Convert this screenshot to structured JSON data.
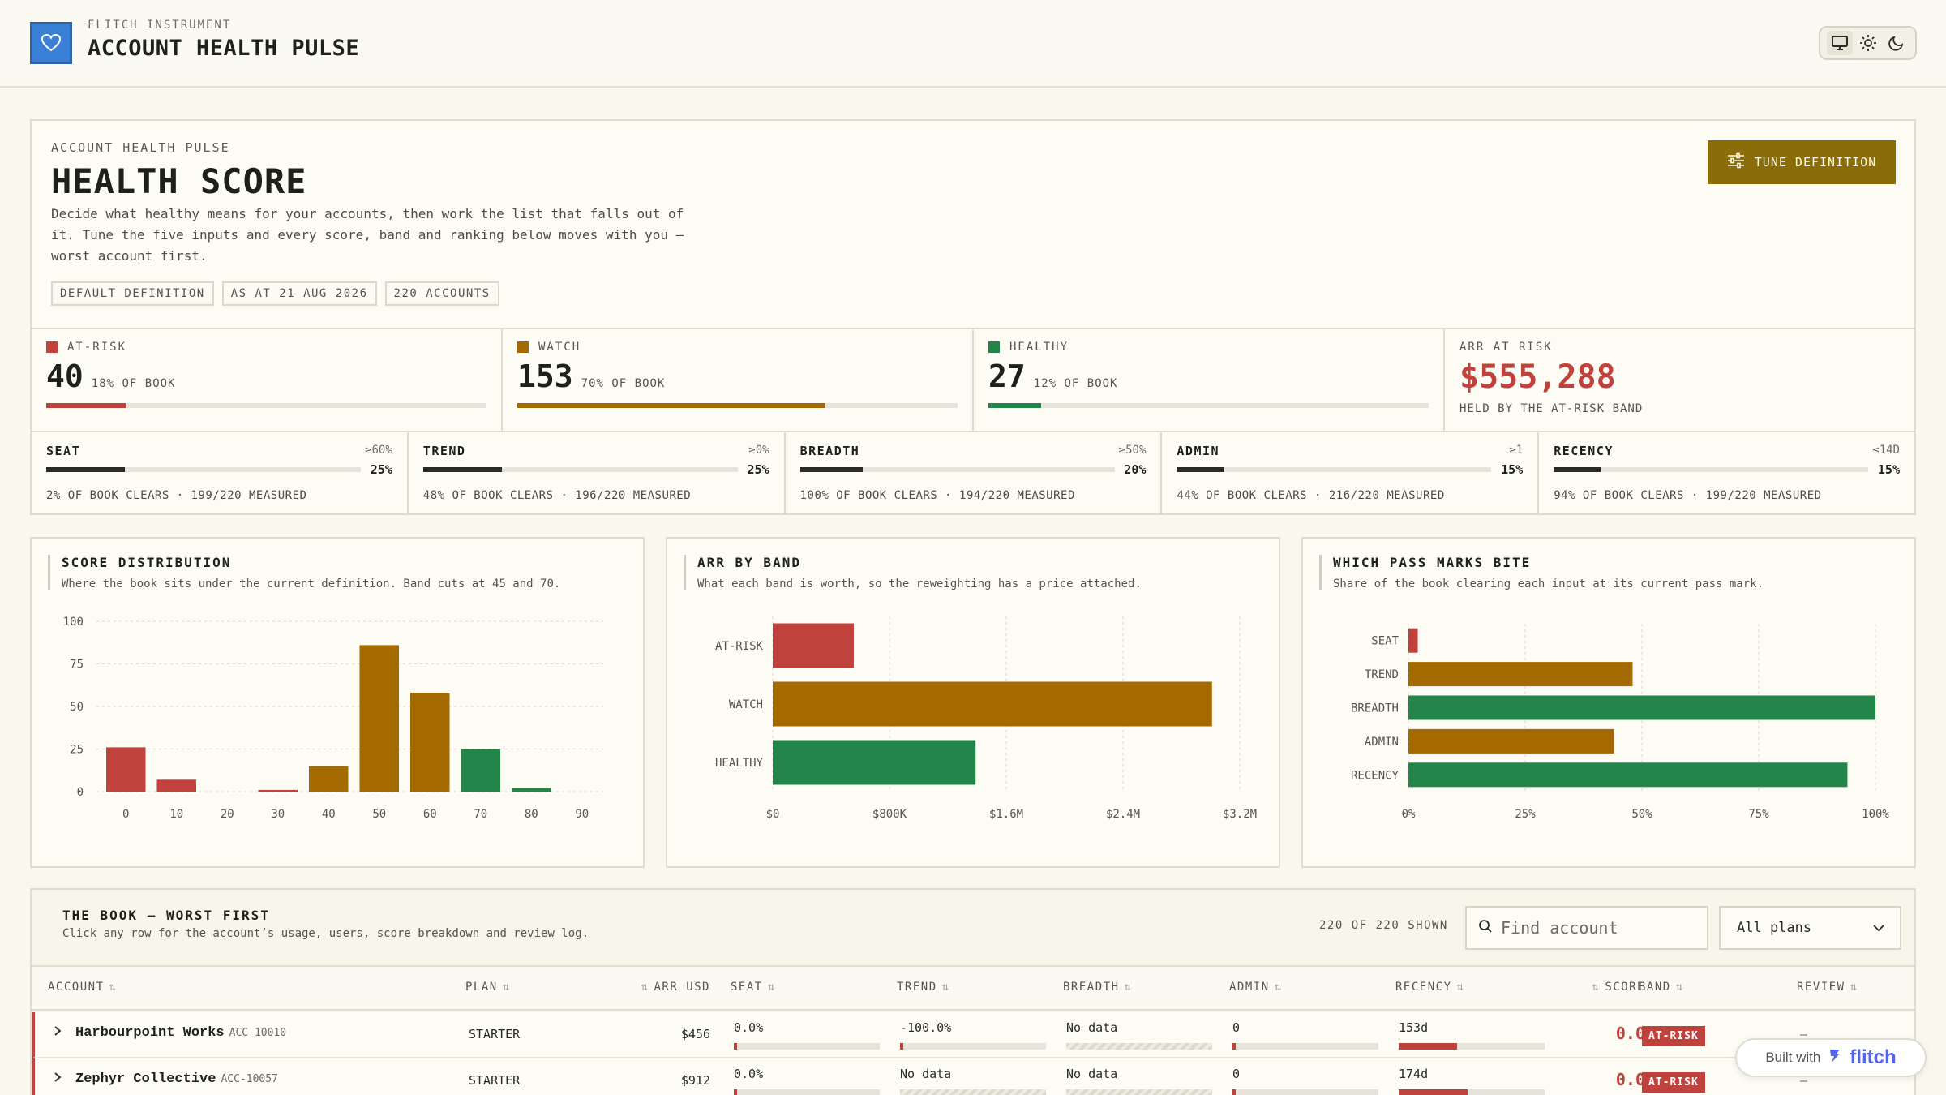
{
  "app": {
    "kicker": "FLITCH INSTRUMENT",
    "title": "ACCOUNT HEALTH PULSE",
    "theme_options": [
      "desktop-icon",
      "sun-icon",
      "moon-icon"
    ]
  },
  "hero": {
    "kicker": "ACCOUNT HEALTH PULSE",
    "title": "HEALTH SCORE",
    "description": "Decide what healthy means for your accounts, then work the list that falls out of it. Tune the five inputs and every score, band and ranking below moves with you — worst account first.",
    "chips": [
      "DEFAULT DEFINITION",
      "AS AT 21 AUG 2026",
      "220 ACCOUNTS"
    ],
    "tune_button": "TUNE DEFINITION"
  },
  "bands": [
    {
      "label": "AT-RISK",
      "count": "40",
      "share_label": "18% OF BOOK",
      "share": 0.18,
      "color": "#c0423d"
    },
    {
      "label": "WATCH",
      "count": "153",
      "share_label": "70% OF BOOK",
      "share": 0.7,
      "color": "#a46a00"
    },
    {
      "label": "HEALTHY",
      "count": "27",
      "share_label": "12% OF BOOK",
      "share": 0.12,
      "color": "#23854a"
    }
  ],
  "arr_at_risk": {
    "label": "ARR AT RISK",
    "value": "$555,288",
    "note": "HELD BY THE AT-RISK BAND"
  },
  "inputs": [
    {
      "name": "SEAT",
      "pass": "≥60%",
      "weight": "25%",
      "weight_value": 0.25,
      "note": "2% OF BOOK CLEARS · 199/220 MEASURED"
    },
    {
      "name": "TREND",
      "pass": "≥0%",
      "weight": "25%",
      "weight_value": 0.25,
      "note": "48% OF BOOK CLEARS · 196/220 MEASURED"
    },
    {
      "name": "BREADTH",
      "pass": "≥50%",
      "weight": "20%",
      "weight_value": 0.2,
      "note": "100% OF BOOK CLEARS · 194/220 MEASURED"
    },
    {
      "name": "ADMIN",
      "pass": "≥1",
      "weight": "15%",
      "weight_value": 0.15,
      "note": "44% OF BOOK CLEARS · 216/220 MEASURED"
    },
    {
      "name": "RECENCY",
      "pass": "≤14D",
      "weight": "15%",
      "weight_value": 0.15,
      "note": "94% OF BOOK CLEARS · 199/220 MEASURED"
    }
  ],
  "chart_data": [
    {
      "type": "bar",
      "title": "SCORE DISTRIBUTION",
      "subtitle": "Where the book sits under the current definition. Band cuts at 45 and 70.",
      "categories": [
        "0",
        "10",
        "20",
        "30",
        "40",
        "50",
        "60",
        "70",
        "80",
        "90"
      ],
      "values": [
        26,
        7,
        0,
        1,
        15,
        86,
        58,
        25,
        2,
        0
      ],
      "colors": [
        "#c0423d",
        "#c0423d",
        "#c0423d",
        "#c0423d",
        "#a46a00",
        "#a46a00",
        "#a46a00",
        "#23854a",
        "#23854a",
        "#23854a"
      ],
      "yticks": [
        "0",
        "25",
        "50",
        "75",
        "100"
      ],
      "ylim": [
        0,
        100
      ],
      "grid": true
    },
    {
      "type": "bar",
      "orientation": "horizontal",
      "title": "ARR BY BAND",
      "subtitle": "What each band is worth, so the reweighting has a price attached.",
      "categories": [
        "AT-RISK",
        "WATCH",
        "HEALTHY"
      ],
      "values": [
        555288,
        3010000,
        1390000
      ],
      "colors": [
        "#c0423d",
        "#a46a00",
        "#23854a"
      ],
      "xticks": [
        "$0",
        "$800K",
        "$1.6M",
        "$2.4M",
        "$3.2M"
      ],
      "xlim": [
        0,
        3200000
      ],
      "grid": true
    },
    {
      "type": "bar",
      "orientation": "horizontal",
      "title": "WHICH PASS MARKS BITE",
      "subtitle": "Share of the book clearing each input at its current pass mark.",
      "categories": [
        "SEAT",
        "TREND",
        "BREADTH",
        "ADMIN",
        "RECENCY"
      ],
      "values": [
        2,
        48,
        100,
        44,
        94
      ],
      "colors": [
        "#c0423d",
        "#a46a00",
        "#23854a",
        "#a46a00",
        "#23854a"
      ],
      "xticks": [
        "0%",
        "25%",
        "50%",
        "75%",
        "100%"
      ],
      "xlim": [
        0,
        100
      ],
      "grid": true
    }
  ],
  "book": {
    "title": "THE BOOK — WORST FIRST",
    "subtitle": "Click any row for the account’s usage, users, score breakdown and review log.",
    "shown": "220 OF 220 SHOWN",
    "search_placeholder": "Find account",
    "plan_filter": "All plans",
    "columns": [
      "ACCOUNT",
      "PLAN",
      "ARR USD",
      "SEAT",
      "TREND",
      "BREADTH",
      "ADMIN",
      "RECENCY",
      "SCORE",
      "BAND",
      "REVIEW"
    ],
    "rows": [
      {
        "name": "Harbourpoint Works",
        "id": "ACC-10010",
        "plan": "STARTER",
        "arr": "$456",
        "seat": "0.0%",
        "trend": "-100.0%",
        "breadth": "No data",
        "admin": "0",
        "recency": "153d",
        "recency_fill": 0.4,
        "score": "0.0",
        "band": "AT-RISK",
        "review": "—"
      },
      {
        "name": "Zephyr Collective",
        "id": "ACC-10057",
        "plan": "STARTER",
        "arr": "$912",
        "seat": "0.0%",
        "trend": "No data",
        "breadth": "No data",
        "admin": "0",
        "recency": "174d",
        "recency_fill": 0.47,
        "score": "0.0",
        "band": "AT-RISK",
        "review": "—"
      }
    ]
  },
  "footer": {
    "built_with": "Built with",
    "brand": "flitch"
  }
}
